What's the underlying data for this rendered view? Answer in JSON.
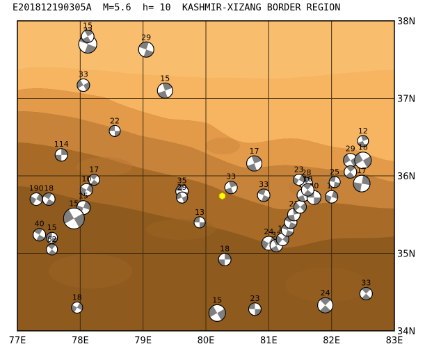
{
  "title": "E201812190305A  M=5.6  h= 10  KASHMIR-XIZANG BORDER REGION",
  "colors": {
    "land_high": "#f7b562",
    "land_mid": "#e39a49",
    "land_low": "#b8762b",
    "land_lowest": "#8f5a1e",
    "grid": "#3a2a10",
    "epicenter": "#ffff00",
    "beachball_dark": "#808080",
    "beachball_light": "#ffffff"
  },
  "map": {
    "lon_range": [
      77,
      83
    ],
    "lat_range": [
      34,
      38
    ],
    "x_ticks": [
      "77E",
      "78E",
      "79E",
      "80E",
      "81E",
      "82E",
      "83E"
    ],
    "y_ticks": [
      "34N",
      "35N",
      "36N",
      "37N",
      "38N"
    ],
    "epicenter": {
      "lon": 80.26,
      "lat": 35.74,
      "symbol": "hexagon"
    }
  },
  "events": [
    {
      "lon": 78.12,
      "lat": 37.7,
      "depth": "33",
      "r": 13,
      "rot": 20
    },
    {
      "lon": 78.12,
      "lat": 37.8,
      "depth": "15",
      "r": 9,
      "rot": 60
    },
    {
      "lon": 79.05,
      "lat": 37.63,
      "depth": "29",
      "r": 11,
      "rot": 200
    },
    {
      "lon": 78.05,
      "lat": 37.17,
      "depth": "33",
      "r": 9,
      "rot": 150
    },
    {
      "lon": 79.35,
      "lat": 37.1,
      "depth": "15",
      "r": 11,
      "rot": 250
    },
    {
      "lon": 78.55,
      "lat": 36.58,
      "depth": "22",
      "r": 8,
      "rot": 0
    },
    {
      "lon": 77.7,
      "lat": 36.27,
      "depth": "114",
      "r": 9,
      "rot": 90
    },
    {
      "lon": 78.22,
      "lat": 35.95,
      "depth": "17",
      "r": 8,
      "rot": 40
    },
    {
      "lon": 78.1,
      "lat": 35.82,
      "depth": "10",
      "r": 9,
      "rot": 120
    },
    {
      "lon": 77.3,
      "lat": 35.7,
      "depth": "190",
      "r": 9,
      "rot": 300
    },
    {
      "lon": 77.5,
      "lat": 35.7,
      "depth": "18",
      "r": 9,
      "rot": 210
    },
    {
      "lon": 78.05,
      "lat": 35.59,
      "depth": "15",
      "r": 10,
      "rot": 110
    },
    {
      "lon": 77.9,
      "lat": 35.45,
      "depth": "15",
      "r": 15,
      "rot": 330
    },
    {
      "lon": 77.35,
      "lat": 35.24,
      "depth": "40",
      "r": 9,
      "rot": 30
    },
    {
      "lon": 77.55,
      "lat": 35.2,
      "depth": "15",
      "r": 8,
      "rot": 180
    },
    {
      "lon": 77.55,
      "lat": 35.05,
      "depth": "62",
      "r": 8,
      "rot": 220
    },
    {
      "lon": 79.62,
      "lat": 35.8,
      "depth": "35",
      "r": 9,
      "rot": 10
    },
    {
      "lon": 79.62,
      "lat": 35.72,
      "depth": "29",
      "r": 8,
      "rot": 160
    },
    {
      "lon": 80.4,
      "lat": 35.85,
      "depth": "33",
      "r": 9,
      "rot": 70
    },
    {
      "lon": 79.9,
      "lat": 35.4,
      "depth": "13",
      "r": 8,
      "rot": 0
    },
    {
      "lon": 80.77,
      "lat": 36.16,
      "depth": "17",
      "r": 11,
      "rot": 250
    },
    {
      "lon": 80.92,
      "lat": 35.75,
      "depth": "33",
      "r": 9,
      "rot": 200
    },
    {
      "lon": 80.3,
      "lat": 34.92,
      "depth": "18",
      "r": 9,
      "rot": 90
    },
    {
      "lon": 80.18,
      "lat": 34.23,
      "depth": "15",
      "r": 12,
      "rot": 330
    },
    {
      "lon": 80.78,
      "lat": 34.28,
      "depth": "23",
      "r": 9,
      "rot": 0
    },
    {
      "lon": 77.95,
      "lat": 34.3,
      "depth": "18",
      "r": 8,
      "rot": 300
    },
    {
      "lon": 81.0,
      "lat": 35.13,
      "depth": "24",
      "r": 10,
      "rot": 300
    },
    {
      "lon": 81.12,
      "lat": 35.1,
      "depth": "33",
      "r": 9,
      "rot": 60
    },
    {
      "lon": 81.22,
      "lat": 35.18,
      "depth": "10",
      "r": 9,
      "rot": 130
    },
    {
      "lon": 81.3,
      "lat": 35.3,
      "depth": "",
      "r": 9,
      "rot": 200
    },
    {
      "lon": 81.35,
      "lat": 35.4,
      "depth": "",
      "r": 9,
      "rot": 20
    },
    {
      "lon": 81.4,
      "lat": 35.5,
      "depth": "23",
      "r": 9,
      "rot": 80
    },
    {
      "lon": 81.5,
      "lat": 35.6,
      "depth": "",
      "r": 9,
      "rot": 140
    },
    {
      "lon": 81.55,
      "lat": 35.75,
      "depth": "10",
      "r": 9,
      "rot": 250
    },
    {
      "lon": 81.6,
      "lat": 35.9,
      "depth": "28",
      "r": 9,
      "rot": 40
    },
    {
      "lon": 81.48,
      "lat": 35.95,
      "depth": "23",
      "r": 8,
      "rot": 300
    },
    {
      "lon": 81.72,
      "lat": 35.72,
      "depth": "10",
      "r": 10,
      "rot": 180
    },
    {
      "lon": 81.62,
      "lat": 35.82,
      "depth": "10",
      "r": 9,
      "rot": 220
    },
    {
      "lon": 82.0,
      "lat": 35.73,
      "depth": "10",
      "r": 9,
      "rot": 110
    },
    {
      "lon": 82.05,
      "lat": 35.92,
      "depth": "25",
      "r": 8,
      "rot": 10
    },
    {
      "lon": 82.5,
      "lat": 36.45,
      "depth": "12",
      "r": 8,
      "rot": 70
    },
    {
      "lon": 82.3,
      "lat": 36.2,
      "depth": "29",
      "r": 10,
      "rot": 330
    },
    {
      "lon": 82.5,
      "lat": 36.2,
      "depth": "18",
      "r": 12,
      "rot": 150
    },
    {
      "lon": 82.3,
      "lat": 36.05,
      "depth": "",
      "r": 9,
      "rot": 50
    },
    {
      "lon": 82.48,
      "lat": 35.9,
      "depth": "17",
      "r": 12,
      "rot": 280
    },
    {
      "lon": 81.9,
      "lat": 34.33,
      "depth": "24",
      "r": 11,
      "rot": 45
    },
    {
      "lon": 82.55,
      "lat": 34.48,
      "depth": "33",
      "r": 9,
      "rot": 45
    }
  ]
}
